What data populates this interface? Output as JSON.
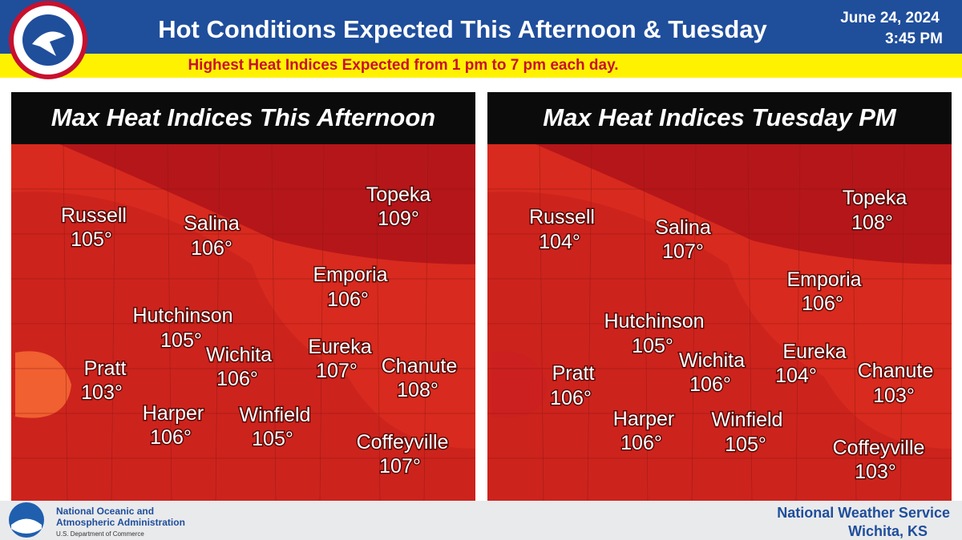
{
  "header": {
    "title": "Hot Conditions Expected This Afternoon & Tuesday",
    "date": "June 24, 2024",
    "time": "3:45 PM",
    "subtitle": "Highest Heat Indices Expected from 1 pm to 7 pm each day."
  },
  "panels": [
    {
      "title": "Max Heat Indices This Afternoon",
      "cities": [
        {
          "name": "Russell",
          "value": "105°"
        },
        {
          "name": "Salina",
          "value": "106°"
        },
        {
          "name": "Topeka",
          "value": "109°"
        },
        {
          "name": "Emporia",
          "value": "106°"
        },
        {
          "name": "Hutchinson",
          "value": "105°"
        },
        {
          "name": "Wichita",
          "value": "106°"
        },
        {
          "name": "Eureka",
          "value": "107°"
        },
        {
          "name": "Chanute",
          "value": "108°"
        },
        {
          "name": "Pratt",
          "value": "103°"
        },
        {
          "name": "Harper",
          "value": "106°"
        },
        {
          "name": "Winfield",
          "value": "105°"
        },
        {
          "name": "Coffeyville",
          "value": "107°"
        }
      ]
    },
    {
      "title": "Max Heat Indices Tuesday PM",
      "cities": [
        {
          "name": "Russell",
          "value": "104°"
        },
        {
          "name": "Salina",
          "value": "107°"
        },
        {
          "name": "Topeka",
          "value": "108°"
        },
        {
          "name": "Emporia",
          "value": "106°"
        },
        {
          "name": "Hutchinson",
          "value": "105°"
        },
        {
          "name": "Wichita",
          "value": "106°"
        },
        {
          "name": "Eureka",
          "value": "104°"
        },
        {
          "name": "Chanute",
          "value": "103°"
        },
        {
          "name": "Pratt",
          "value": "106°"
        },
        {
          "name": "Harper",
          "value": "106°"
        },
        {
          "name": "Winfield",
          "value": "105°"
        },
        {
          "name": "Coffeyville",
          "value": "103°"
        }
      ]
    }
  ],
  "footer": {
    "noaa_line1": "National Oceanic and",
    "noaa_line2": "Atmospheric Administration",
    "noaa_line3": "U.S. Department of Commerce",
    "nws": "National Weather Service",
    "office": "Wichita, KS"
  }
}
